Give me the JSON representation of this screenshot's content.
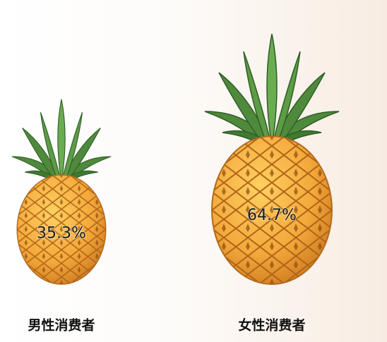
{
  "chart_data": {
    "type": "pictograph",
    "categories": [
      "男性消费者",
      "女性消费者"
    ],
    "values": [
      35.3,
      64.7
    ],
    "value_labels": [
      "35.3%",
      "64.7%"
    ]
  }
}
